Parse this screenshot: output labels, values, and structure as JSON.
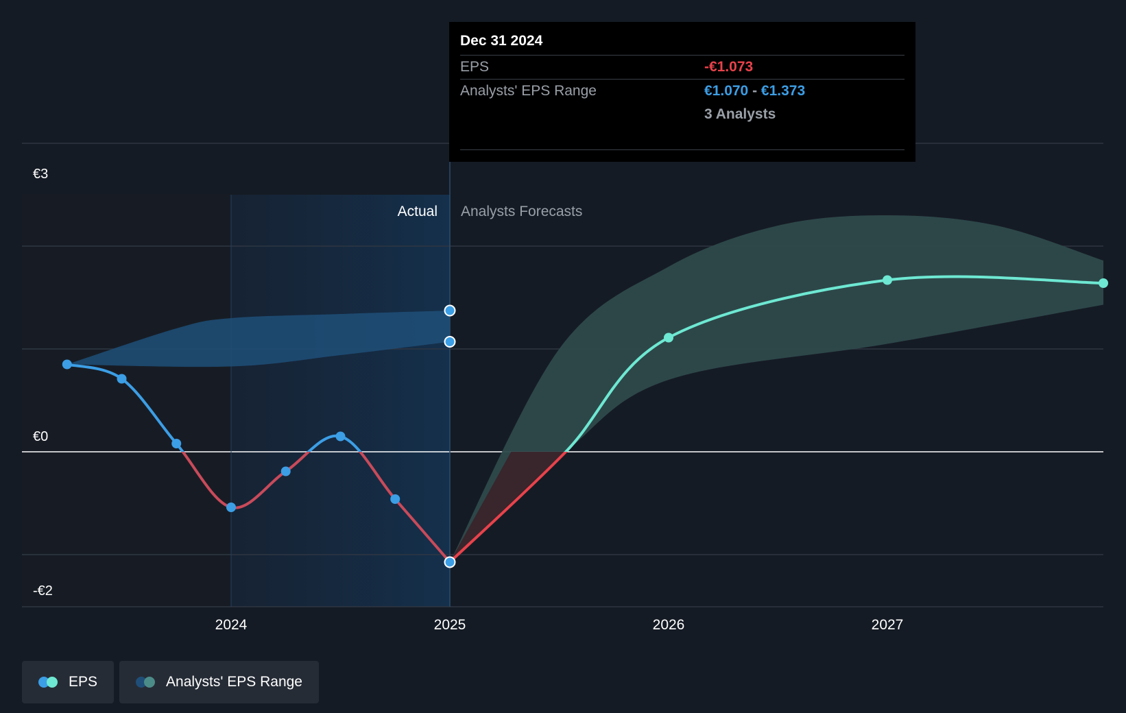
{
  "chart_data": {
    "type": "line",
    "x_ticks": [
      "2024",
      "2025",
      "2026",
      "2027"
    ],
    "y_ticks": [
      "€3",
      "€0",
      "-€2"
    ],
    "regions": {
      "actual_label": "Actual",
      "forecast_label": "Analysts Forecasts"
    },
    "eps_actual": [
      {
        "x": 2023.25,
        "y": 0.85
      },
      {
        "x": 2023.5,
        "y": 0.71
      },
      {
        "x": 2023.75,
        "y": 0.08
      },
      {
        "x": 2024.0,
        "y": -0.54
      },
      {
        "x": 2024.25,
        "y": -0.19
      },
      {
        "x": 2024.5,
        "y": 0.15
      },
      {
        "x": 2024.75,
        "y": -0.46
      },
      {
        "x": 2025.0,
        "y": -1.073
      }
    ],
    "eps_forecast": [
      {
        "x": 2025.0,
        "y": -1.073
      },
      {
        "x": 2025.53,
        "y": 0.0
      },
      {
        "x": 2026.0,
        "y": 1.11
      },
      {
        "x": 2027.0,
        "y": 1.67
      },
      {
        "x": 2028.0,
        "y": 1.64
      }
    ],
    "actual_range_upper": [
      {
        "x": 2023.25,
        "y": 0.85
      },
      {
        "x": 2023.75,
        "y": 1.2
      },
      {
        "x": 2024.0,
        "y": 1.3
      },
      {
        "x": 2024.5,
        "y": 1.34
      },
      {
        "x": 2025.0,
        "y": 1.373
      }
    ],
    "actual_range_lower": [
      {
        "x": 2023.25,
        "y": 0.85
      },
      {
        "x": 2024.0,
        "y": 0.83
      },
      {
        "x": 2024.5,
        "y": 0.94
      },
      {
        "x": 2025.0,
        "y": 1.07
      }
    ],
    "forecast_range_upper": [
      {
        "x": 2025.0,
        "y": -1.073
      },
      {
        "x": 2025.5,
        "y": 1.0
      },
      {
        "x": 2026.0,
        "y": 1.8
      },
      {
        "x": 2026.5,
        "y": 2.2
      },
      {
        "x": 2027.0,
        "y": 2.3
      },
      {
        "x": 2027.5,
        "y": 2.2
      },
      {
        "x": 2028.0,
        "y": 1.86
      }
    ],
    "forecast_range_lower": [
      {
        "x": 2025.0,
        "y": -1.073
      },
      {
        "x": 2025.53,
        "y": 0.0
      },
      {
        "x": 2026.0,
        "y": 0.7
      },
      {
        "x": 2027.0,
        "y": 1.05
      },
      {
        "x": 2028.0,
        "y": 1.43
      }
    ],
    "colors": {
      "eps_positive": "#3c9ee5",
      "eps_negative": "#e8424b",
      "forecast_line": "#6ee8d2",
      "forecast_band": "#2e4a4c",
      "actual_band": "#1f4f78"
    }
  },
  "tooltip": {
    "date": "Dec 31 2024",
    "eps_label": "EPS",
    "eps_value": "-€1.073",
    "range_label": "Analysts' EPS Range",
    "range_low": "€1.070",
    "range_sep": "-",
    "range_high": "€1.373",
    "analysts": "3 Analysts"
  },
  "legend": {
    "eps_label": "EPS",
    "range_label": "Analysts' EPS Range"
  }
}
